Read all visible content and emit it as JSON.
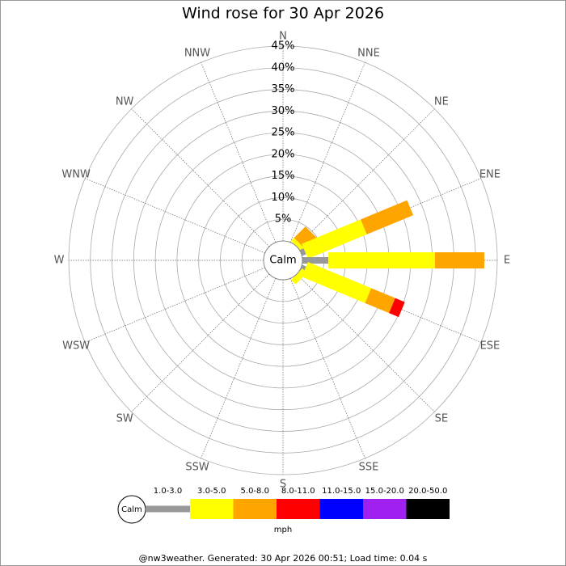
{
  "chart_data": {
    "type": "windrose",
    "title": "Wind rose for 30 Apr 2026",
    "categories": [
      "N",
      "NNE",
      "NE",
      "ENE",
      "E",
      "ESE",
      "SE",
      "SSE",
      "S",
      "SSW",
      "SW",
      "WSW",
      "W",
      "WNW",
      "NW",
      "NNW"
    ],
    "calm_label": "Calm",
    "rlim": [
      0,
      45
    ],
    "rticks": [
      {
        "value": 5,
        "label": "5%"
      },
      {
        "value": 10,
        "label": "10%"
      },
      {
        "value": 15,
        "label": "15%"
      },
      {
        "value": 20,
        "label": "20%"
      },
      {
        "value": 25,
        "label": "25%"
      },
      {
        "value": 30,
        "label": "30%"
      },
      {
        "value": 35,
        "label": "35%"
      },
      {
        "value": 40,
        "label": "40%"
      },
      {
        "value": 45,
        "label": "45%"
      }
    ],
    "series": [
      {
        "name": "1.0-3.0",
        "color": "#999999",
        "values": [
          0,
          0,
          0,
          1,
          6,
          1,
          0,
          0,
          0,
          0,
          0,
          0,
          0,
          0,
          0,
          0
        ]
      },
      {
        "name": "3.0-5.0",
        "color": "#ffff00",
        "values": [
          0,
          0,
          1,
          14.7,
          24.6,
          15.8,
          1.5,
          0,
          0,
          0,
          0,
          0,
          0,
          0,
          0,
          0
        ]
      },
      {
        "name": "5.0-8.0",
        "color": "#ffa500",
        "values": [
          0,
          0,
          3.7,
          11.6,
          11.4,
          6.0,
          0,
          0,
          0,
          0,
          0,
          0,
          0,
          0,
          0,
          0
        ]
      },
      {
        "name": "8.0-11.0",
        "color": "#ff0000",
        "values": [
          0,
          0,
          0,
          0,
          0,
          2.4,
          0,
          0,
          0,
          0,
          0,
          0,
          0,
          0,
          0,
          0
        ]
      },
      {
        "name": "11.0-15.0",
        "color": "#0000ff",
        "values": [
          0,
          0,
          0,
          0,
          0,
          0,
          0,
          0,
          0,
          0,
          0,
          0,
          0,
          0,
          0,
          0
        ]
      },
      {
        "name": "15.0-20.0",
        "color": "#a020f0",
        "values": [
          0,
          0,
          0,
          0,
          0,
          0,
          0,
          0,
          0,
          0,
          0,
          0,
          0,
          0,
          0,
          0
        ]
      },
      {
        "name": "20.0-50.0",
        "color": "#000000",
        "values": [
          0,
          0,
          0,
          0,
          0,
          0,
          0,
          0,
          0,
          0,
          0,
          0,
          0,
          0,
          0,
          0
        ]
      }
    ],
    "unit_label": "mph",
    "footer": "@nw3weather. Generated: 30 Apr 2026 00:51; Load time: 0.04 s"
  }
}
